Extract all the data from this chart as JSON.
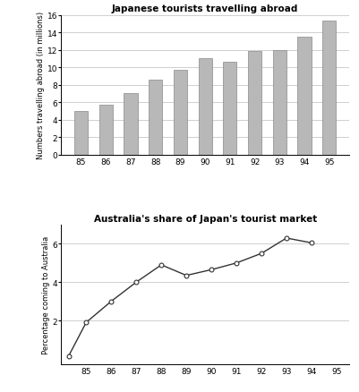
{
  "bar_years": [
    "85",
    "86",
    "87",
    "88",
    "89",
    "90",
    "91",
    "92",
    "93",
    "94",
    "95"
  ],
  "bar_values": [
    5.0,
    5.7,
    7.0,
    8.6,
    9.7,
    11.0,
    10.6,
    11.9,
    12.0,
    13.5,
    15.3
  ],
  "bar_color": "#b8b8b8",
  "bar_edge_color": "#888888",
  "bar_title": "Japanese tourists travelling abroad",
  "bar_ylabel": "Numbers travelling abroad (in millions)",
  "bar_ylim": [
    0,
    16
  ],
  "bar_yticks": [
    0,
    2,
    4,
    6,
    8,
    10,
    12,
    14,
    16
  ],
  "line_years": [
    84.3,
    85,
    86,
    87,
    88,
    89,
    90,
    91,
    92,
    93,
    94
  ],
  "line_values": [
    0.15,
    1.9,
    3.0,
    4.0,
    4.9,
    4.35,
    4.65,
    5.0,
    5.5,
    6.3,
    6.05
  ],
  "line_color": "#333333",
  "line_marker": "o",
  "line_marker_face": "white",
  "line_title": "Australia's share of Japan's tourist market",
  "line_ylabel": "Percentage coming to Australia",
  "line_ylim": [
    -0.3,
    7
  ],
  "line_yticks": [
    2,
    4,
    6
  ],
  "line_xticks": [
    85,
    86,
    87,
    88,
    89,
    90,
    91,
    92,
    93,
    94,
    95
  ],
  "bg_color": "#ffffff",
  "grid_color": "#c8c8c8"
}
